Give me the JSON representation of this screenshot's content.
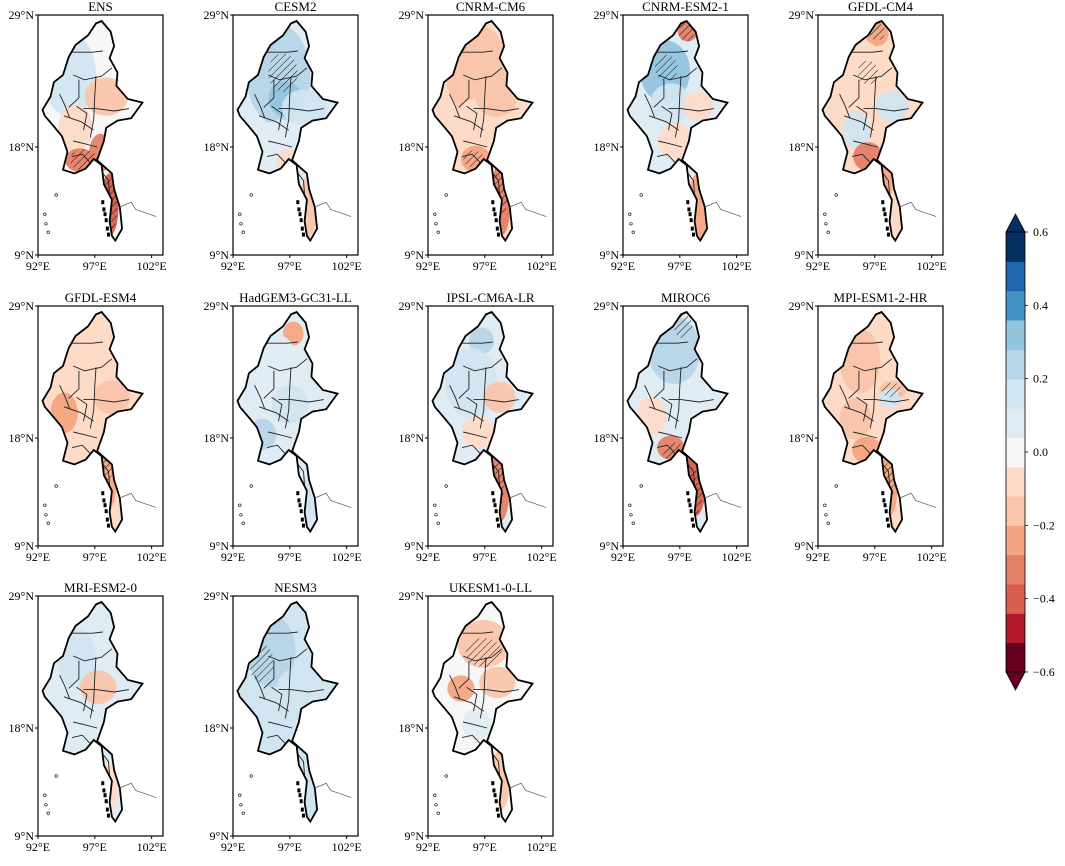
{
  "panels": [
    {
      "title": "ENS",
      "pattern": "ens"
    },
    {
      "title": "CESM2",
      "pattern": "cesm2"
    },
    {
      "title": "CNRM-CM6",
      "pattern": "cnrmcm6"
    },
    {
      "title": "CNRM-ESM2-1",
      "pattern": "cnrmesm"
    },
    {
      "title": "GFDL-CM4",
      "pattern": "gfdlcm4"
    },
    {
      "title": "GFDL-ESM4",
      "pattern": "gfdlesm4"
    },
    {
      "title": "HadGEM3-GC31-LL",
      "pattern": "hadgem"
    },
    {
      "title": "IPSL-CM6A-LR",
      "pattern": "ipsl"
    },
    {
      "title": "MIROC6",
      "pattern": "miroc"
    },
    {
      "title": "MPI-ESM1-2-HR",
      "pattern": "mpi"
    },
    {
      "title": "MRI-ESM2-0",
      "pattern": "mri"
    },
    {
      "title": "NESM3",
      "pattern": "nesm3"
    },
    {
      "title": "UKESM1-0-LL",
      "pattern": "ukesm"
    }
  ],
  "axes": {
    "lat_ticks": [
      "9°N",
      "18°N",
      "29°N"
    ],
    "lon_ticks": [
      "92°E",
      "97°E",
      "102°E"
    ],
    "lat_range": [
      9,
      29
    ],
    "lon_range": [
      92,
      103
    ]
  },
  "colorbar": {
    "labels": [
      "0.6",
      "0.4",
      "0.2",
      "0.0",
      "−0.2",
      "−0.4",
      "−0.6"
    ],
    "min": -0.6,
    "max": 0.6,
    "colors": [
      "#67001f",
      "#b2182b",
      "#d6604d",
      "#e48066",
      "#f4a582",
      "#f9c5ab",
      "#fddbc7",
      "#f7f7f7",
      "#e0ecf3",
      "#d1e5f0",
      "#b7d5e8",
      "#92c5de",
      "#4393c3",
      "#2166ac",
      "#053061"
    ],
    "extend": "both"
  }
}
